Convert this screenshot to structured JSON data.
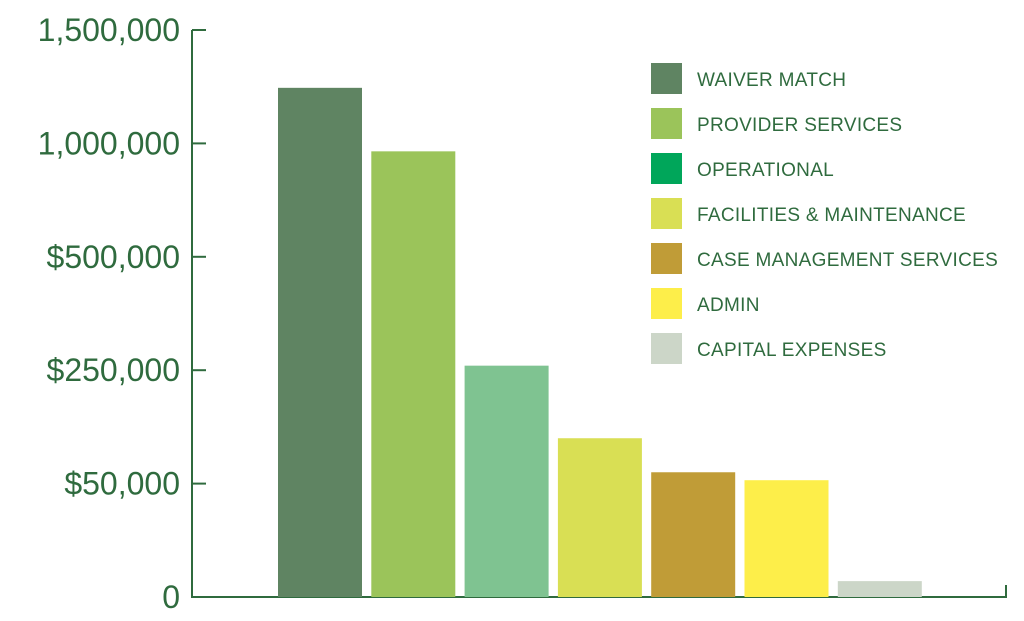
{
  "chart_data": {
    "type": "bar",
    "title": "",
    "xlabel": "",
    "ylabel": "",
    "y_tick_labels": [
      "0",
      "$50,000",
      "$250,000",
      "$500,000",
      "1,000,000",
      "1,500,000"
    ],
    "y_scale_note": "nonlinear tick spacing (equal spacing per label)",
    "legend_position": "top-right",
    "categories": [
      "WAIVER MATCH",
      "PROVIDER SERVICES",
      "OPERATIONAL",
      "FACILITIES & MAINTENANCE",
      "CASE MANAGEMENT SERVICES",
      "ADMIN",
      "CAPITAL EXPENSES"
    ],
    "values": [
      1245000,
      965000,
      260000,
      130000,
      70000,
      56000,
      7000
    ],
    "colors": [
      "#5f8462",
      "#9bc45a",
      "#7fc391",
      "#d9df54",
      "#c09c37",
      "#fdee4a",
      "#ccd6c8"
    ],
    "legend_colors": [
      "#5f8462",
      "#9bc45a",
      "#00a65a",
      "#d9df54",
      "#c09c37",
      "#fdee4a",
      "#ccd6c8"
    ]
  }
}
